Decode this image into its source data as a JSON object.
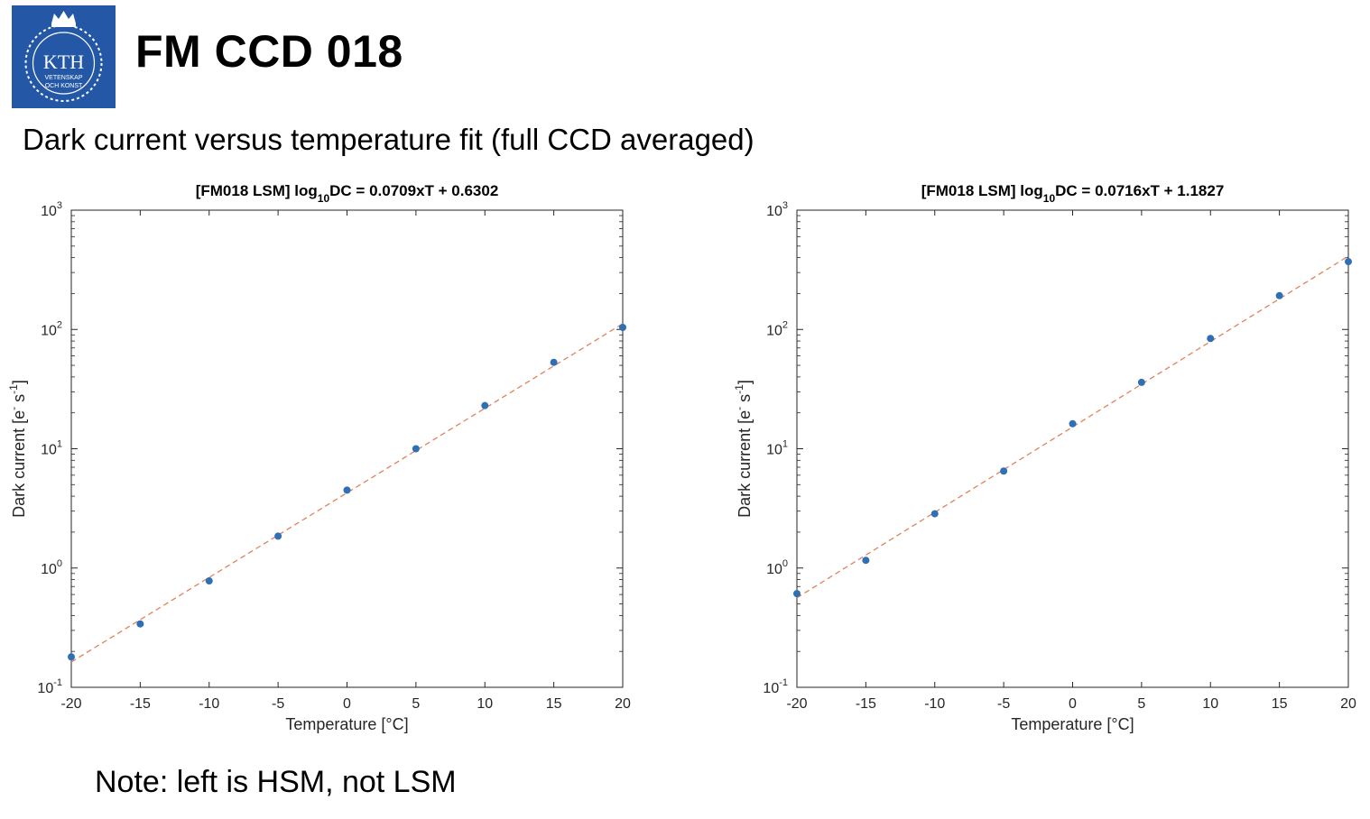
{
  "header": {
    "logo": {
      "icon": "kth-crest-icon",
      "text_main": "KTH",
      "text_line1": "VETENSKAP",
      "text_line2": "OCH KONST",
      "color": "#2458a6"
    },
    "title": "FM CCD 018",
    "subtitle": "Dark current versus temperature fit (full CCD averaged)"
  },
  "note": "Note: left is HSM, not LSM",
  "chart_data": [
    {
      "type": "scatter",
      "title_prefix": "[FM018 LSM] log",
      "title_sub": "10",
      "title_suffix": "DC = 0.0709xT + 0.6302",
      "xlabel": "Temperature [°C]",
      "ylabel_main": "Dark current [e",
      "ylabel_sup1": "-",
      "ylabel_mid": " s",
      "ylabel_sup2": "-1",
      "ylabel_end": "]",
      "yscale": "log",
      "xlim": [
        -20,
        20
      ],
      "ylim": [
        0.1,
        1000
      ],
      "xticks": [
        -20,
        -15,
        -10,
        -5,
        0,
        5,
        10,
        15,
        20
      ],
      "xtick_labels": [
        "-20",
        "-15",
        "-10",
        "-5",
        "0",
        "5",
        "10",
        "15",
        "20"
      ],
      "yticks": [
        {
          "value": 0.1,
          "base": "10",
          "exp": "-1"
        },
        {
          "value": 1,
          "base": "10",
          "exp": "0"
        },
        {
          "value": 10,
          "base": "10",
          "exp": "1"
        },
        {
          "value": 100,
          "base": "10",
          "exp": "2"
        },
        {
          "value": 1000,
          "base": "10",
          "exp": "3"
        }
      ],
      "grid": false,
      "series": [
        {
          "kind": "points",
          "color": "#2e6fb5",
          "x": [
            -20,
            -15,
            -10,
            -5,
            0,
            5,
            10,
            15,
            20
          ],
          "y": [
            0.18,
            0.34,
            0.78,
            1.85,
            4.5,
            10,
            23,
            53,
            104
          ]
        },
        {
          "kind": "fit",
          "color": "#e0825a",
          "dash": "dashed",
          "slope": 0.0709,
          "intercept": 0.6302
        }
      ]
    },
    {
      "type": "scatter",
      "title_prefix": "[FM018 LSM] log",
      "title_sub": "10",
      "title_suffix": "DC = 0.0716xT + 1.1827",
      "xlabel": "Temperature [°C]",
      "ylabel_main": "Dark current [e",
      "ylabel_sup1": "-",
      "ylabel_mid": " s",
      "ylabel_sup2": "-1",
      "ylabel_end": "]",
      "yscale": "log",
      "xlim": [
        -20,
        20
      ],
      "ylim": [
        0.1,
        1000
      ],
      "xticks": [
        -20,
        -15,
        -10,
        -5,
        0,
        5,
        10,
        15,
        20
      ],
      "xtick_labels": [
        "-20",
        "-15",
        "-10",
        "-5",
        "0",
        "5",
        "10",
        "15",
        "20"
      ],
      "yticks": [
        {
          "value": 0.1,
          "base": "10",
          "exp": "-1"
        },
        {
          "value": 1,
          "base": "10",
          "exp": "0"
        },
        {
          "value": 10,
          "base": "10",
          "exp": "1"
        },
        {
          "value": 100,
          "base": "10",
          "exp": "2"
        },
        {
          "value": 1000,
          "base": "10",
          "exp": "3"
        }
      ],
      "grid": false,
      "series": [
        {
          "kind": "points",
          "color": "#2e6fb5",
          "x": [
            -20,
            -15,
            -10,
            -5,
            0,
            5,
            10,
            15,
            20
          ],
          "y": [
            0.61,
            1.16,
            2.85,
            6.5,
            16.2,
            36,
            84,
            192,
            370
          ]
        },
        {
          "kind": "fit",
          "color": "#e0825a",
          "dash": "dashed",
          "slope": 0.0716,
          "intercept": 1.1827
        }
      ]
    }
  ]
}
